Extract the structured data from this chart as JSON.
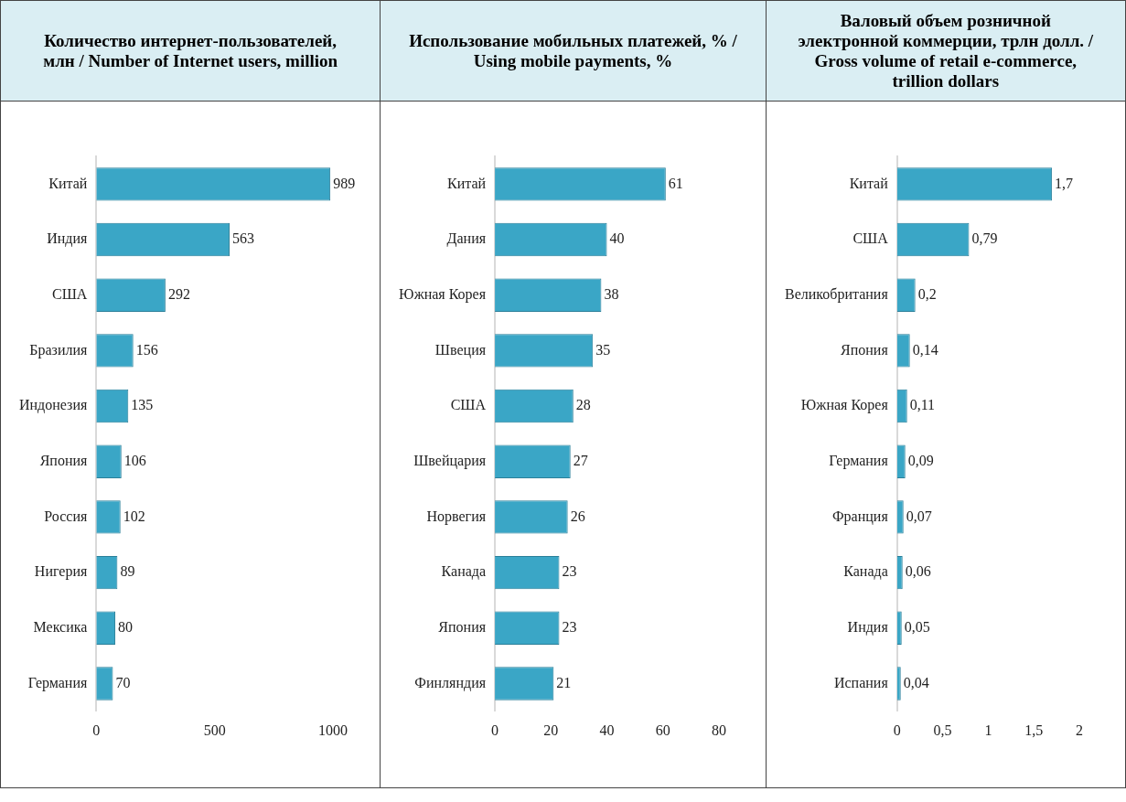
{
  "chart_data": [
    {
      "type": "bar",
      "orientation": "horizontal",
      "title": "Количество интернет-пользователей, млн / Number of Internet users, million",
      "categories": [
        "Китай",
        "Индия",
        "США",
        "Бразилия",
        "Индонезия",
        "Япония",
        "Россия",
        "Нигерия",
        "Мексика",
        "Германия"
      ],
      "values": [
        989,
        563,
        292,
        156,
        135,
        106,
        102,
        89,
        80,
        70
      ],
      "color": "#3aa6c6",
      "xlim": [
        0,
        1000
      ],
      "xticks": [
        0,
        500,
        1000
      ],
      "data_labels": true
    },
    {
      "type": "bar",
      "orientation": "horizontal",
      "title": "Использование мобильных платежей, % / Using mobile payments, %",
      "categories": [
        "Китай",
        "Дания",
        "Южная Корея",
        "Швеция",
        "США",
        "Швейцария",
        "Норвегия",
        "Канада",
        "Япония",
        "Финляндия"
      ],
      "values": [
        61,
        40,
        38,
        35,
        28,
        27,
        26,
        23,
        23,
        21
      ],
      "color": "#3aa6c6",
      "xlim": [
        0,
        80
      ],
      "xticks": [
        0,
        20,
        40,
        60,
        80
      ],
      "data_labels": true
    },
    {
      "type": "bar",
      "orientation": "horizontal",
      "title": "Валовый объем розничной электронной коммерции, трлн долл. / Gross volume of retail e-commerce, trillion dollars",
      "categories": [
        "Китай",
        "США",
        "Великобритания",
        "Япония",
        "Южная Корея",
        "Германия",
        "Франция",
        "Канада",
        "Индия",
        "Испания"
      ],
      "values": [
        1.7,
        0.79,
        0.2,
        0.14,
        0.11,
        0.09,
        0.07,
        0.06,
        0.05,
        0.04
      ],
      "value_labels": [
        "1,7",
        "0,79",
        "0,2",
        "0,14",
        "0,11",
        "0,09",
        "0,07",
        "0,06",
        "0,05",
        "0,04"
      ],
      "color": "#3aa6c6",
      "xlim": [
        0,
        2
      ],
      "xticks": [
        0,
        {
          "value": 0.5,
          "label": "0,5"
        },
        1,
        {
          "value": 1.5,
          "label": "1,5"
        },
        2
      ]
    }
  ]
}
